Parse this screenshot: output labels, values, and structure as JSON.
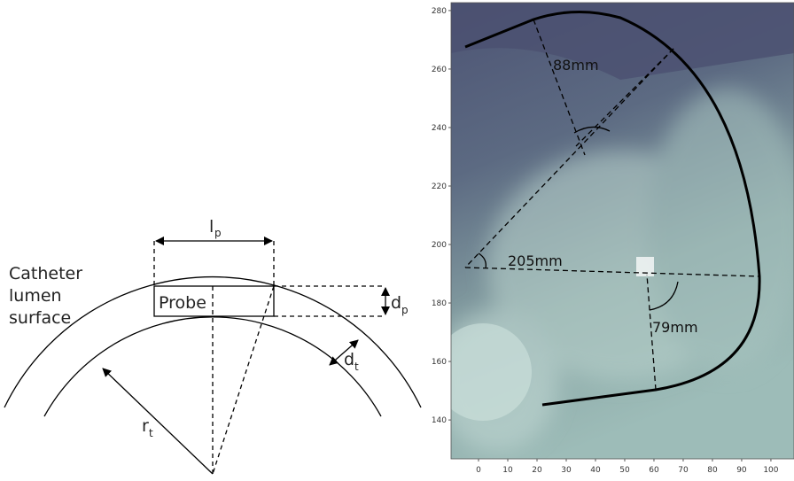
{
  "diagram": {
    "lp": {
      "main": "l",
      "sub": "p"
    },
    "catheter_label": [
      "Catheter",
      "lumen",
      "surface"
    ],
    "probe": "Probe",
    "dp": {
      "main": "d",
      "sub": "p"
    },
    "dt": {
      "main": "d",
      "sub": "t"
    },
    "rt": {
      "main": "r",
      "sub": "t"
    }
  },
  "chart_data": {
    "type": "image",
    "xlim": [
      -9.4,
      107.9
    ],
    "ylim": [
      126.7,
      282.7
    ],
    "xticks": [
      0,
      10,
      20,
      30,
      40,
      50,
      60,
      70,
      80,
      90,
      100
    ],
    "yticks": [
      140,
      160,
      180,
      200,
      220,
      240,
      260,
      280
    ],
    "annotations": [
      "88mm",
      "205mm",
      "79mm"
    ]
  }
}
